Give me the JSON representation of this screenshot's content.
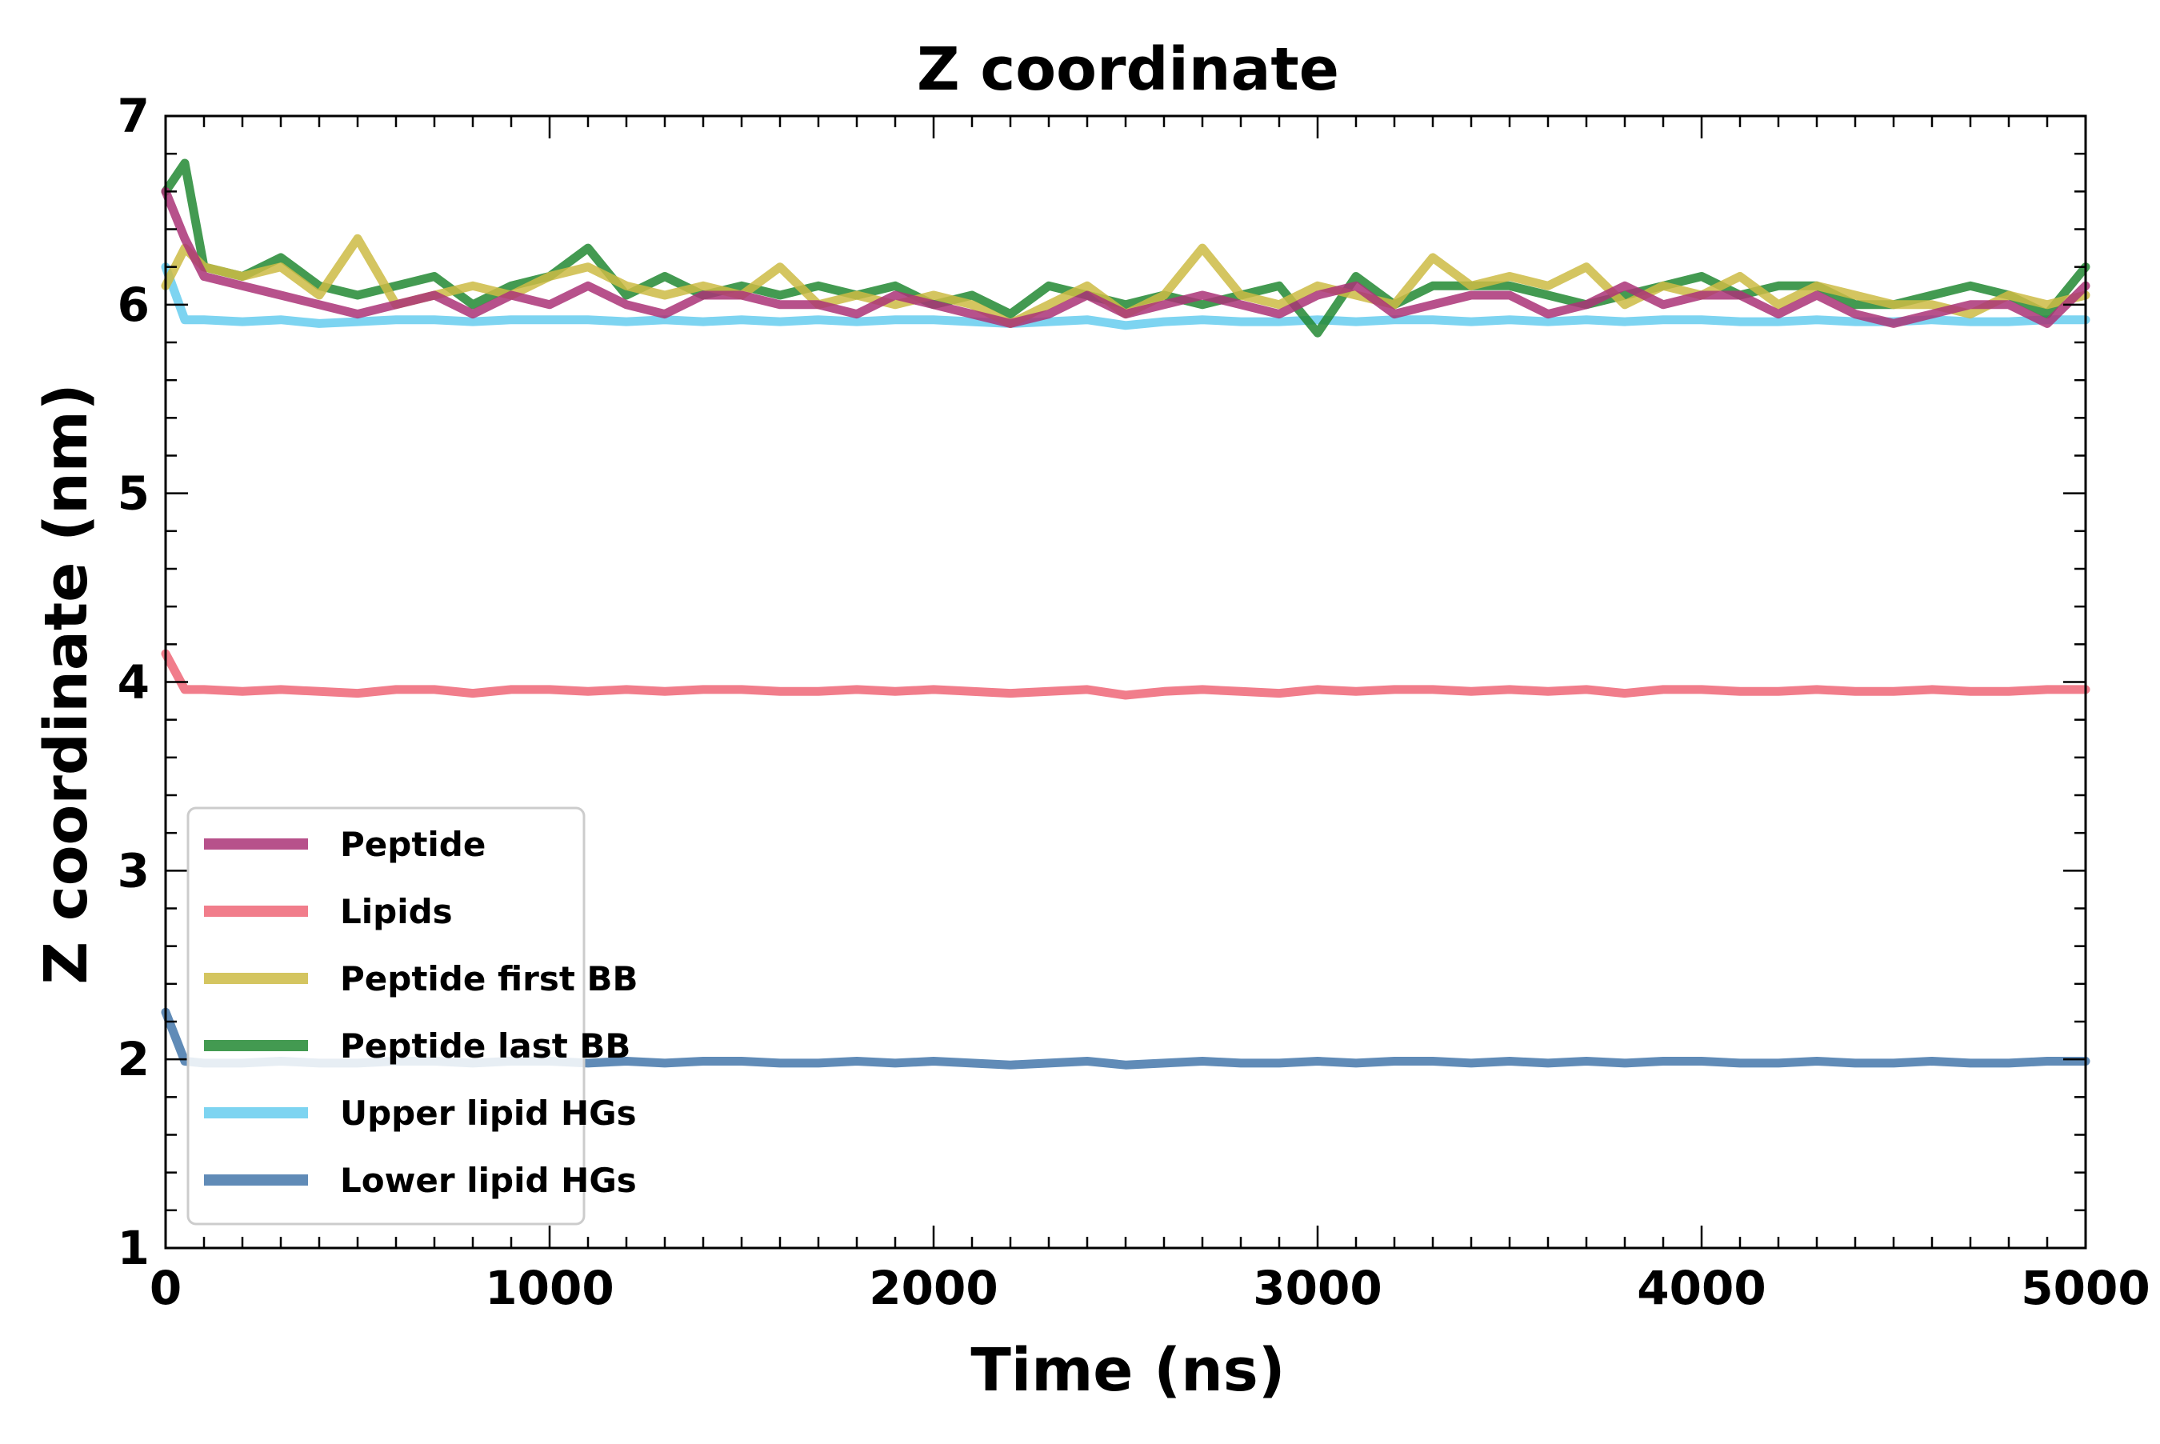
{
  "chart_data": {
    "type": "line",
    "title": "Z coordinate",
    "xlabel": "Time (ns)",
    "ylabel": "Z coordinate (nm)",
    "xlim": [
      0,
      5000
    ],
    "ylim": [
      1,
      7
    ],
    "xticks": [
      0,
      1000,
      2000,
      3000,
      4000,
      5000
    ],
    "yticks": [
      1,
      2,
      3,
      4,
      5,
      6,
      7
    ],
    "grid": false,
    "legend_position": "lower-left",
    "x": [
      0,
      50,
      100,
      200,
      300,
      400,
      500,
      600,
      700,
      800,
      900,
      1000,
      1100,
      1200,
      1300,
      1400,
      1500,
      1600,
      1700,
      1800,
      1900,
      2000,
      2100,
      2200,
      2300,
      2400,
      2500,
      2600,
      2700,
      2800,
      2900,
      3000,
      3100,
      3200,
      3300,
      3400,
      3500,
      3600,
      3700,
      3800,
      3900,
      4000,
      4100,
      4200,
      4300,
      4400,
      4500,
      4600,
      4700,
      4800,
      4900,
      5000
    ],
    "series": [
      {
        "name": "Peptide",
        "color": "#aa3377",
        "values": [
          6.6,
          6.35,
          6.15,
          6.1,
          6.05,
          6.0,
          5.95,
          6.0,
          6.05,
          5.95,
          6.05,
          6.0,
          6.1,
          6.0,
          5.95,
          6.05,
          6.05,
          6.0,
          6.0,
          5.95,
          6.05,
          6.0,
          5.95,
          5.9,
          5.95,
          6.05,
          5.95,
          6.0,
          6.05,
          6.0,
          5.95,
          6.05,
          6.1,
          5.95,
          6.0,
          6.05,
          6.05,
          5.95,
          6.0,
          6.1,
          6.0,
          6.05,
          6.05,
          5.95,
          6.05,
          5.95,
          5.9,
          5.95,
          6.0,
          6.0,
          5.9,
          6.1
        ]
      },
      {
        "name": "Lipids",
        "color": "#ee6677",
        "values": [
          4.15,
          3.96,
          3.96,
          3.95,
          3.96,
          3.95,
          3.94,
          3.96,
          3.96,
          3.94,
          3.96,
          3.96,
          3.95,
          3.96,
          3.95,
          3.96,
          3.96,
          3.95,
          3.95,
          3.96,
          3.95,
          3.96,
          3.95,
          3.94,
          3.95,
          3.96,
          3.93,
          3.95,
          3.96,
          3.95,
          3.94,
          3.96,
          3.95,
          3.96,
          3.96,
          3.95,
          3.96,
          3.95,
          3.96,
          3.94,
          3.96,
          3.96,
          3.95,
          3.95,
          3.96,
          3.95,
          3.95,
          3.96,
          3.95,
          3.95,
          3.96,
          3.96
        ]
      },
      {
        "name": "Peptide first BB",
        "color": "#ccbb44",
        "values": [
          6.1,
          6.3,
          6.2,
          6.15,
          6.2,
          6.05,
          6.35,
          6.0,
          6.05,
          6.1,
          6.05,
          6.15,
          6.2,
          6.1,
          6.05,
          6.1,
          6.05,
          6.2,
          6.0,
          6.05,
          6.0,
          6.05,
          6.0,
          5.9,
          6.0,
          6.1,
          5.95,
          6.05,
          6.3,
          6.05,
          6.0,
          6.1,
          6.05,
          6.0,
          6.25,
          6.1,
          6.15,
          6.1,
          6.2,
          6.0,
          6.1,
          6.05,
          6.15,
          6.0,
          6.1,
          6.05,
          6.0,
          6.0,
          5.95,
          6.05,
          6.0,
          6.05
        ]
      },
      {
        "name": "Peptide last BB",
        "color": "#228833",
        "values": [
          6.6,
          6.75,
          6.2,
          6.15,
          6.25,
          6.1,
          6.05,
          6.1,
          6.15,
          6.0,
          6.1,
          6.15,
          6.3,
          6.05,
          6.15,
          6.05,
          6.1,
          6.05,
          6.1,
          6.05,
          6.1,
          6.0,
          6.05,
          5.95,
          6.1,
          6.05,
          6.0,
          6.05,
          6.0,
          6.05,
          6.1,
          5.85,
          6.15,
          6.0,
          6.1,
          6.1,
          6.1,
          6.05,
          6.0,
          6.05,
          6.1,
          6.15,
          6.05,
          6.1,
          6.1,
          6.0,
          6.0,
          6.05,
          6.1,
          6.05,
          5.95,
          6.2
        ]
      },
      {
        "name": "Upper lipid HGs",
        "color": "#66ccee",
        "values": [
          6.2,
          5.92,
          5.92,
          5.91,
          5.92,
          5.9,
          5.91,
          5.92,
          5.92,
          5.91,
          5.92,
          5.92,
          5.92,
          5.91,
          5.92,
          5.91,
          5.92,
          5.91,
          5.92,
          5.91,
          5.92,
          5.92,
          5.91,
          5.9,
          5.91,
          5.92,
          5.89,
          5.91,
          5.92,
          5.91,
          5.91,
          5.92,
          5.91,
          5.92,
          5.92,
          5.91,
          5.92,
          5.91,
          5.92,
          5.91,
          5.92,
          5.92,
          5.91,
          5.91,
          5.92,
          5.91,
          5.91,
          5.92,
          5.91,
          5.91,
          5.92,
          5.92
        ]
      },
      {
        "name": "Lower lipid HGs",
        "color": "#4477aa",
        "values": [
          2.25,
          1.99,
          1.98,
          1.98,
          1.99,
          1.98,
          1.98,
          1.99,
          1.99,
          1.98,
          1.99,
          1.99,
          1.98,
          1.99,
          1.98,
          1.99,
          1.99,
          1.98,
          1.98,
          1.99,
          1.98,
          1.99,
          1.98,
          1.97,
          1.98,
          1.99,
          1.97,
          1.98,
          1.99,
          1.98,
          1.98,
          1.99,
          1.98,
          1.99,
          1.99,
          1.98,
          1.99,
          1.98,
          1.99,
          1.98,
          1.99,
          1.99,
          1.98,
          1.98,
          1.99,
          1.98,
          1.98,
          1.99,
          1.98,
          1.98,
          1.99,
          1.99
        ]
      }
    ]
  }
}
